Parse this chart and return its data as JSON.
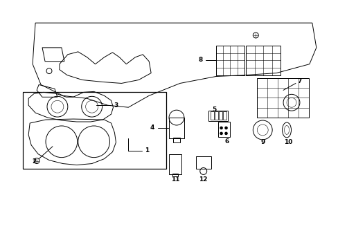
{
  "background_color": "#ffffff",
  "line_color": "#000000",
  "label_color": "#000000",
  "fig_width": 4.89,
  "fig_height": 3.6,
  "dpi": 100,
  "lw": 0.7
}
